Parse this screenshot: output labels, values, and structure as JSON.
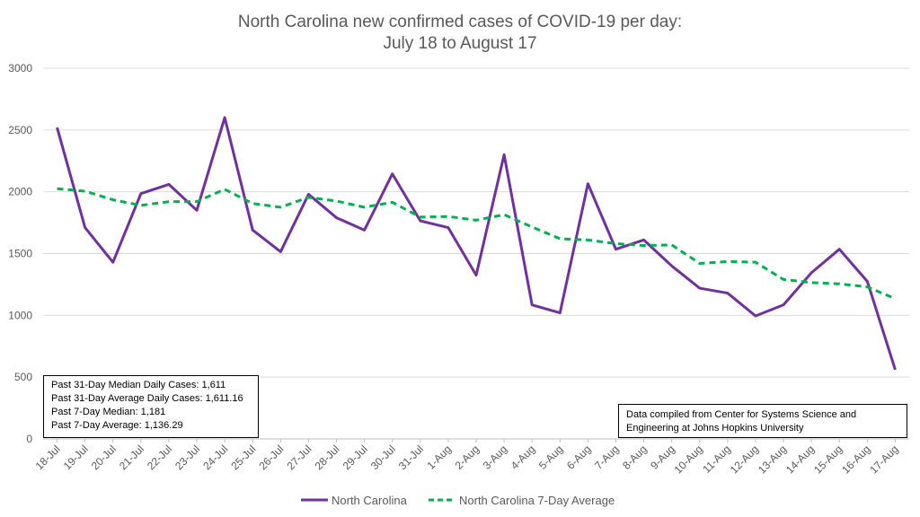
{
  "chart_data": {
    "type": "line",
    "title_lines": [
      "North Carolina new confirmed cases of COVID-19 per day:",
      "July 18 to August 17"
    ],
    "categories": [
      "18-Jul",
      "19-Jul",
      "20-Jul",
      "21-Jul",
      "22-Jul",
      "23-Jul",
      "24-Jul",
      "25-Jul",
      "26-Jul",
      "27-Jul",
      "28-Jul",
      "29-Jul",
      "30-Jul",
      "31-Jul",
      "1-Aug",
      "2-Aug",
      "3-Aug",
      "4-Aug",
      "5-Aug",
      "6-Aug",
      "7-Aug",
      "8-Aug",
      "9-Aug",
      "10-Aug",
      "11-Aug",
      "12-Aug",
      "13-Aug",
      "14-Aug",
      "15-Aug",
      "16-Aug",
      "17-Aug"
    ],
    "ylim": [
      0,
      3000
    ],
    "yticks": [
      "0",
      "500",
      "1000",
      "1500",
      "2000",
      "2500",
      "3000"
    ],
    "grid": true,
    "legend_position": "bottom",
    "series": [
      {
        "name": "North Carolina",
        "color": "#7030a0",
        "style": "solid",
        "values": [
          2520,
          1710,
          1430,
          1985,
          2060,
          1850,
          2600,
          1690,
          1515,
          1980,
          1790,
          1690,
          2145,
          1765,
          1710,
          1325,
          2300,
          1085,
          1020,
          2065,
          1535,
          1610,
          1400,
          1220,
          1180,
          995,
          1085,
          1345,
          1535,
          1275,
          560
        ]
      },
      {
        "name": "North Carolina 7-Day Average",
        "color": "#00b050",
        "style": "dashed",
        "values": [
          2025,
          2005,
          1935,
          1890,
          1920,
          1920,
          2020,
          1905,
          1875,
          1955,
          1925,
          1875,
          1915,
          1795,
          1800,
          1770,
          1815,
          1715,
          1620,
          1610,
          1580,
          1565,
          1570,
          1420,
          1435,
          1430,
          1290,
          1265,
          1255,
          1230,
          1135
        ]
      }
    ]
  },
  "stats_box": {
    "lines": [
      "Past 31-Day Median Daily Cases: 1,611",
      "Past 31-Day Average Daily Cases: 1,611.16",
      "Past 7-Day Median: 1,181",
      "Past 7-Day Average: 1,136.29"
    ]
  },
  "source_box": {
    "text": "Data compiled from Center for Systems Science and Engineering at Johns Hopkins University"
  }
}
